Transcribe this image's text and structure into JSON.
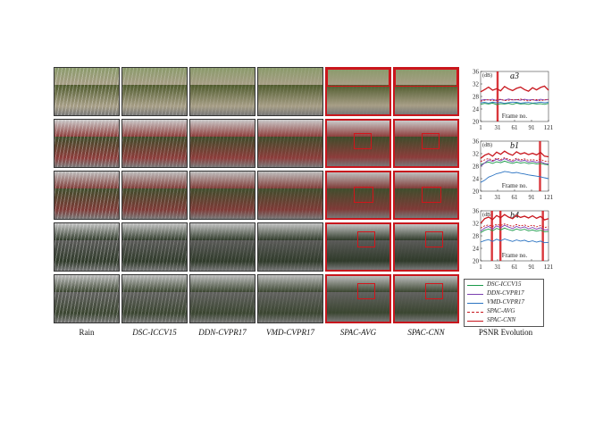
{
  "columns": [
    {
      "label": "Rain",
      "italic": false
    },
    {
      "label": "DSC-ICCV15",
      "italic": true
    },
    {
      "label": "DDN-CVPR17",
      "italic": true
    },
    {
      "label": "VMD-CVPR17",
      "italic": true
    },
    {
      "label": "SPAC-AVG",
      "italic": true
    },
    {
      "label": "SPAC-CNN",
      "italic": true
    }
  ],
  "psnr_label": "PSNR Evolution",
  "legend": [
    {
      "label": "DSC-ICCV15",
      "color": "#1a9a4a",
      "dash": false
    },
    {
      "label": "DDN-CVPR17",
      "color": "#7a3fb0",
      "dash": false
    },
    {
      "label": "VMD-CVPR17",
      "color": "#2b73c2",
      "dash": false
    },
    {
      "label": "SPAC-AVG",
      "color": "#c8161d",
      "dash": true
    },
    {
      "label": "SPAC-CNN",
      "color": "#c8161d",
      "dash": false
    }
  ],
  "row_palettes": [
    {
      "sky": "#8a9a6a",
      "scene": "#4f5b2d",
      "accent": "#a79e86"
    },
    {
      "sky": "#c9c9c9",
      "scene": "#3e4c2a",
      "accent": "#8c3c3a"
    },
    {
      "sky": "#bfbfbf",
      "scene": "#3f4d2c",
      "accent": "#7e3a36"
    },
    {
      "sky": "#c4c4c4",
      "scene": "#5a5a58",
      "accent": "#2f3a2a"
    },
    {
      "sky": "#bdbdbd",
      "scene": "#626260",
      "accent": "#3a4530"
    }
  ],
  "chart_data": [
    {
      "type": "line",
      "title": "a3",
      "unit": "(dB)",
      "xlabel": "Frame no.",
      "xticks": [
        1,
        31,
        61,
        91,
        121
      ],
      "yticks": [
        20,
        24,
        28,
        32,
        36
      ],
      "ylim": [
        20,
        36
      ],
      "xlim": [
        1,
        121
      ],
      "highlight_frames": [
        31
      ],
      "series": [
        {
          "name": "SPAC-CNN",
          "color": "#c8161d",
          "values": [
            29.5,
            30.2,
            31.0,
            30.0,
            30.5,
            29.8,
            31.2,
            30.4,
            29.9,
            30.6,
            31.0,
            30.2,
            29.7,
            30.8,
            30.1,
            30.9,
            31.3,
            30.0
          ]
        },
        {
          "name": "SPAC-AVG",
          "color": "#c8161d",
          "values": [
            26.5,
            26.8,
            27.0,
            26.6,
            26.9,
            27.1,
            26.7,
            26.8,
            27.0,
            26.9,
            27.2,
            26.8,
            26.6,
            26.9,
            27.0,
            26.7,
            26.9,
            27.1
          ]
        },
        {
          "name": "DDN-CVPR17",
          "color": "#7a3fb0",
          "values": [
            26.8,
            27.0,
            26.9,
            27.1,
            26.7,
            27.0,
            26.8,
            27.2,
            26.9,
            27.0,
            26.8,
            27.1,
            26.9,
            27.0,
            26.7,
            27.1,
            26.9,
            27.0
          ]
        },
        {
          "name": "DSC-ICCV15",
          "color": "#1a9a4a",
          "values": [
            25.5,
            25.8,
            25.6,
            25.9,
            25.4,
            25.7,
            25.6,
            25.8,
            25.5,
            25.9,
            25.6,
            25.7,
            25.5,
            25.8,
            25.6,
            25.7,
            25.5,
            25.8
          ]
        },
        {
          "name": "VMD-CVPR17",
          "color": "#2b73c2",
          "values": [
            26.0,
            26.1,
            25.9,
            26.2,
            26.0,
            26.1,
            25.8,
            26.0,
            26.2,
            26.1,
            25.9,
            26.0,
            26.1,
            25.9,
            26.0,
            26.2,
            26.0,
            26.1
          ]
        }
      ]
    },
    {
      "type": "line",
      "title": "b1",
      "unit": "(dB)",
      "xlabel": "Frame no.",
      "xticks": [
        1,
        31,
        61,
        91,
        121
      ],
      "yticks": [
        20,
        24,
        28,
        32,
        36
      ],
      "ylim": [
        20,
        36
      ],
      "xlim": [
        1,
        121
      ],
      "highlight_frames": [
        106
      ],
      "series": [
        {
          "name": "SPAC-CNN",
          "color": "#c8161d",
          "values": [
            30.5,
            31.5,
            32.0,
            31.2,
            32.5,
            31.8,
            32.8,
            32.0,
            31.5,
            32.6,
            31.9,
            32.3,
            31.7,
            32.1,
            31.6,
            32.4,
            31.2,
            31.0
          ]
        },
        {
          "name": "SPAC-AVG",
          "color": "#c8161d",
          "values": [
            29.5,
            30.0,
            30.5,
            29.8,
            30.6,
            30.1,
            30.7,
            30.2,
            29.9,
            30.5,
            30.0,
            30.3,
            29.9,
            30.1,
            29.8,
            30.2,
            29.6,
            29.5
          ]
        },
        {
          "name": "DDN-CVPR17",
          "color": "#7a3fb0",
          "values": [
            28.0,
            29.0,
            30.0,
            29.5,
            30.2,
            29.7,
            30.4,
            29.8,
            29.4,
            30.1,
            29.6,
            29.9,
            29.3,
            29.6,
            29.2,
            29.5,
            28.9,
            28.7
          ]
        },
        {
          "name": "DSC-ICCV15",
          "color": "#1a9a4a",
          "values": [
            28.5,
            29.0,
            29.3,
            28.9,
            29.4,
            29.1,
            29.6,
            29.2,
            28.9,
            29.3,
            29.0,
            29.2,
            28.8,
            29.0,
            28.7,
            28.9,
            28.6,
            28.4
          ]
        },
        {
          "name": "VMD-CVPR17",
          "color": "#2b73c2",
          "values": [
            22.8,
            23.5,
            24.5,
            25.0,
            25.6,
            25.9,
            26.3,
            26.1,
            25.8,
            26.0,
            25.7,
            25.5,
            25.2,
            25.0,
            24.8,
            24.6,
            24.3,
            24.0
          ]
        }
      ]
    },
    {
      "type": "line",
      "title": "b4",
      "unit": "(dB)",
      "xlabel": "Frame no.",
      "xticks": [
        1,
        31,
        61,
        91,
        121
      ],
      "yticks": [
        20,
        24,
        28,
        32,
        36
      ],
      "ylim": [
        20,
        36
      ],
      "xlim": [
        1,
        121
      ],
      "highlight_frames": [
        21,
        36,
        111
      ],
      "series": [
        {
          "name": "SPAC-CNN",
          "color": "#c8161d",
          "values": [
            32.0,
            33.5,
            34.0,
            33.2,
            34.5,
            33.8,
            34.8,
            34.0,
            33.5,
            34.6,
            33.9,
            34.3,
            33.7,
            34.4,
            33.6,
            34.2,
            33.1,
            33.5
          ]
        },
        {
          "name": "SPAC-AVG",
          "color": "#c8161d",
          "values": [
            30.5,
            31.2,
            31.5,
            31.0,
            31.7,
            31.3,
            31.8,
            31.4,
            31.0,
            31.6,
            31.2,
            31.5,
            31.0,
            31.4,
            30.9,
            31.3,
            30.7,
            30.9
          ]
        },
        {
          "name": "DDN-CVPR17",
          "color": "#7a3fb0",
          "values": [
            29.5,
            30.5,
            31.0,
            30.2,
            31.2,
            30.6,
            31.4,
            30.8,
            30.3,
            31.0,
            30.5,
            30.9,
            30.2,
            30.7,
            30.1,
            30.6,
            29.9,
            30.0
          ]
        },
        {
          "name": "DSC-ICCV15",
          "color": "#1a9a4a",
          "values": [
            29.0,
            29.8,
            30.2,
            29.6,
            30.4,
            29.9,
            30.5,
            30.0,
            29.7,
            30.2,
            29.8,
            30.1,
            29.6,
            29.9,
            29.5,
            29.8,
            29.3,
            29.4
          ]
        },
        {
          "name": "VMD-CVPR17",
          "color": "#2b73c2",
          "values": [
            26.0,
            26.5,
            26.8,
            26.2,
            26.9,
            26.4,
            27.0,
            26.6,
            26.2,
            26.7,
            26.3,
            26.6,
            26.1,
            26.4,
            26.0,
            26.3,
            25.8,
            25.9
          ]
        }
      ]
    }
  ]
}
